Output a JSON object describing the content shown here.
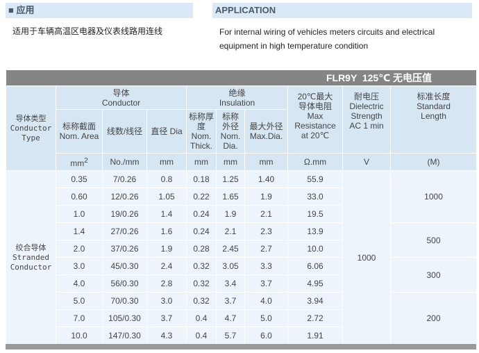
{
  "application": {
    "cn": {
      "heading": "■ 应用",
      "text": "适用于车辆高温区电器及仪表线路用连线"
    },
    "en": {
      "heading": "APPLICATION",
      "text": [
        "For internal wiring of vehicles meters circuits and electrical",
        "equipment in high temperature condition"
      ]
    }
  },
  "table": {
    "title": "FLR9Y  125℃ 无电压值",
    "header": {
      "conductor_type": [
        "导体类型",
        "Conductor",
        "Type"
      ],
      "conductor": [
        "导体",
        "Conductor"
      ],
      "insulation": [
        "绝缘",
        "Insulation"
      ],
      "resistance": [
        "20℃最大",
        "导体电阻",
        "Max",
        "Resistance",
        "at 20℃"
      ],
      "dielectric": [
        "耐电压",
        "Dielectric",
        "Strength",
        "AC 1 min"
      ],
      "length": [
        "标准长度",
        "Standard",
        "Length"
      ],
      "nom_area": [
        "标称截面",
        "Nom. Area"
      ],
      "wires": [
        "线数/线径"
      ],
      "dia": [
        "直径  Dia"
      ],
      "thick": [
        "标称厚",
        "度",
        "Nom.",
        "Thick."
      ],
      "nom_dia": [
        "标称",
        "外径",
        "Nom.",
        "Dia."
      ],
      "max_dia": [
        "最大外径",
        "Max.Dia."
      ]
    },
    "units": {
      "area": "mm",
      "area_sup": "2",
      "cols": [
        "No./mm",
        "mm",
        "mm",
        "mm",
        "mm",
        "Ω.mm",
        "V",
        "(M)"
      ]
    },
    "body_type": [
      "绞合导体",
      "Stranded",
      "Conductor"
    ],
    "rows": [
      [
        "0.35",
        "7/0.26",
        "0.8",
        "0.18",
        "1.25",
        "1.40",
        "55.9"
      ],
      [
        "0.60",
        "12/0.26",
        "1.05",
        "0.22",
        "1.65",
        "1.9",
        "33.0"
      ],
      [
        "1.0",
        "19/0.26",
        "1.4",
        "0.24",
        "1.9",
        "2.1",
        "19.5"
      ],
      [
        "1.4",
        "27/0.26",
        "1.6",
        "0.24",
        "2.1",
        "2.3",
        "13.9"
      ],
      [
        "2.0",
        "37/0.26",
        "1.9",
        "0.28",
        "2.45",
        "2.7",
        "10.0"
      ],
      [
        "3.0",
        "45/0.30",
        "2.4",
        "0.32",
        "3.05",
        "3.3",
        "6.06"
      ],
      [
        "4.0",
        "56/0.30",
        "2.8",
        "0.32",
        "3.4",
        "3.7",
        "4.95"
      ],
      [
        "5.0",
        "70/0.30",
        "3.0",
        "0.32",
        "3.7",
        "4.0",
        "3.94"
      ],
      [
        "7.0",
        "105/0.30",
        "3.7",
        "0.4",
        "4.7",
        "5.0",
        "2.72"
      ],
      [
        "10.0",
        "147/0.30",
        "4.3",
        "0.4",
        "5.7",
        "6.0",
        "1.91"
      ]
    ],
    "dielectric_value": "1000",
    "lengths": [
      {
        "value": "1000",
        "rows": 3
      },
      {
        "value": "500",
        "rows": 2
      },
      {
        "value": "300",
        "rows": 2
      },
      {
        "value": "200",
        "rows": 3
      }
    ]
  }
}
